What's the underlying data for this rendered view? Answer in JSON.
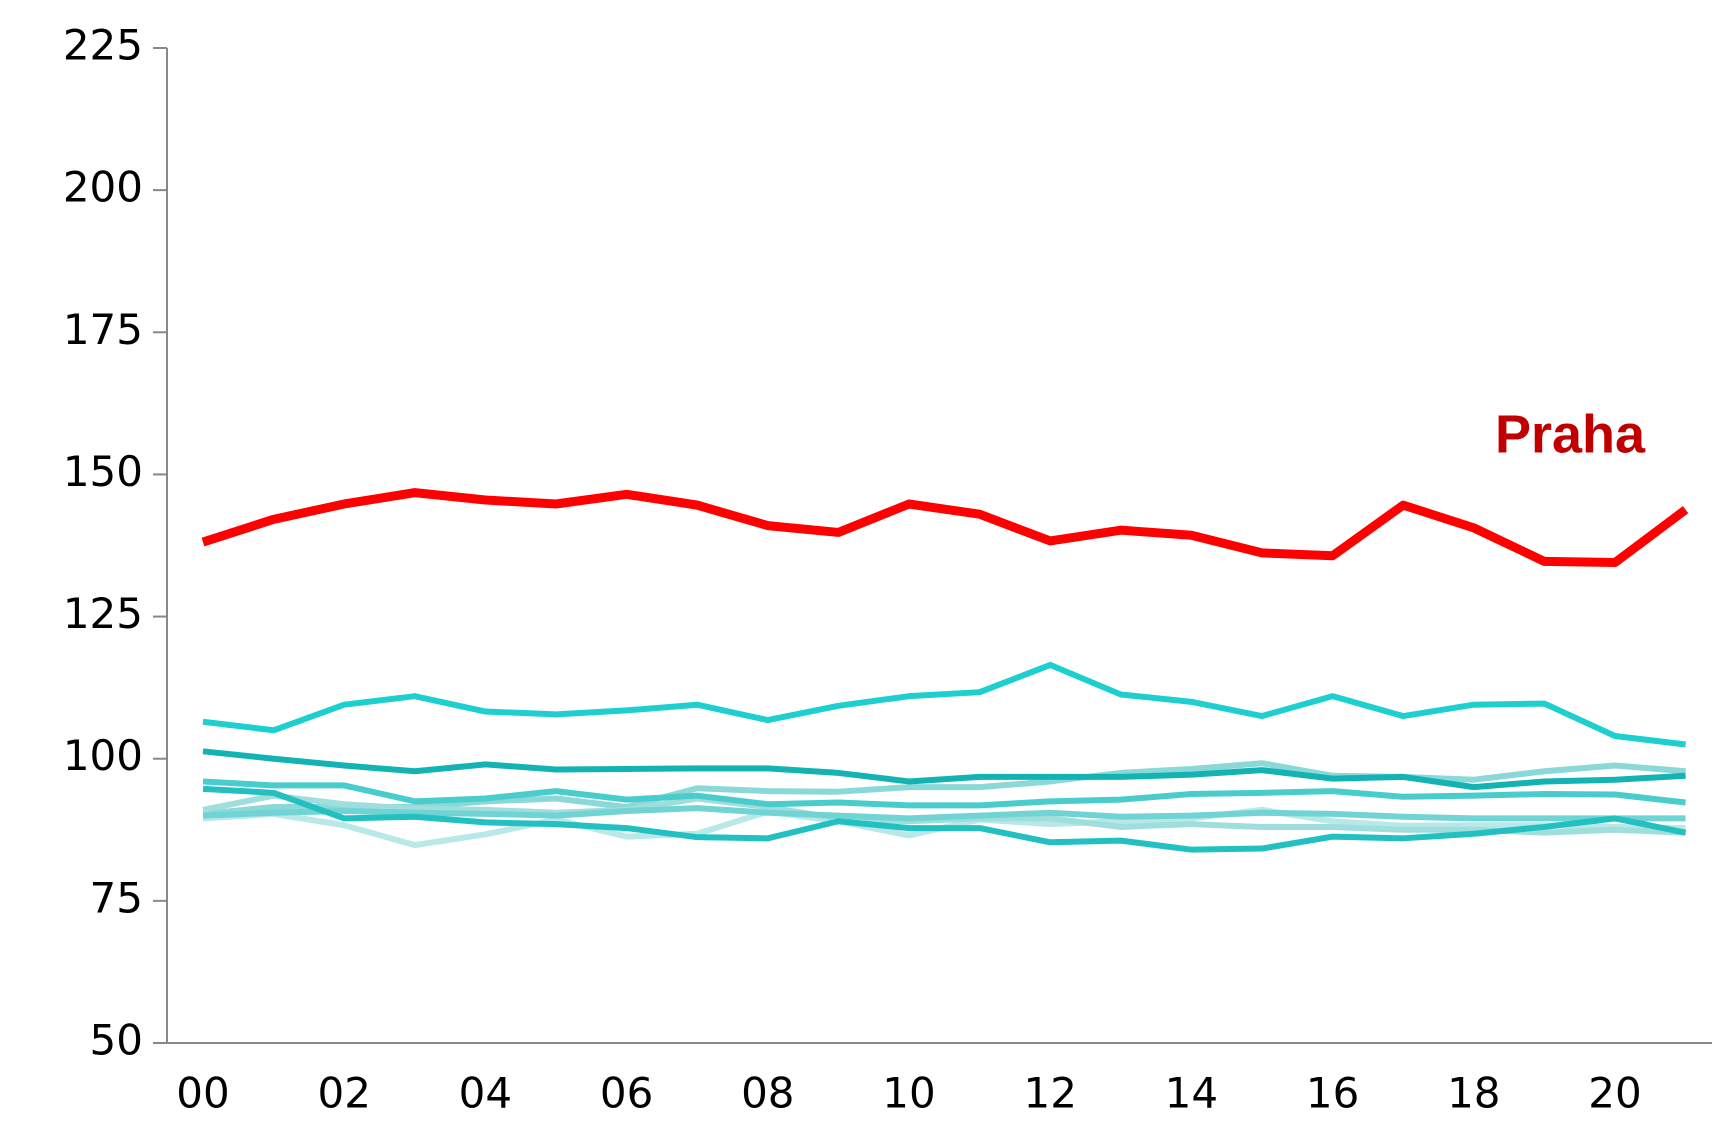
{
  "chart_data": {
    "type": "line",
    "categories": [
      "00",
      null,
      "02",
      null,
      "04",
      null,
      "06",
      null,
      "08",
      null,
      "10",
      null,
      "12",
      null,
      "14",
      null,
      "16",
      null,
      "18",
      null,
      "20",
      null
    ],
    "ylim": [
      50,
      225
    ],
    "yticks": [
      50,
      75,
      100,
      125,
      150,
      175,
      200,
      225
    ],
    "series": [
      {
        "name": "Praha",
        "color": "#ff0000",
        "values": [
          138.1,
          142.1,
          144.8,
          146.8,
          145.5,
          144.8,
          146.5,
          144.6,
          141,
          139.8,
          144.8,
          143,
          138.3,
          140.2,
          139.3,
          136.2,
          135.7,
          144.6,
          140.6,
          134.7,
          134.5,
          143.8
        ]
      },
      {
        "color": "#1ecfcf",
        "values": [
          106.5,
          105,
          109.5,
          111,
          108.3,
          107.8,
          108.5,
          109.5,
          106.8,
          109.3,
          111,
          111.7,
          116.5,
          111.3,
          110,
          107.5,
          111,
          107.5,
          109.5,
          109.7,
          104,
          102.5
        ]
      },
      {
        "color": "#14b3b3",
        "values": [
          101.3,
          100,
          98.8,
          97.8,
          99,
          98.1,
          98.2,
          98.3,
          98.3,
          97.5,
          96,
          96.8,
          96.8,
          96.8,
          97.2,
          98,
          96.5,
          96.8,
          95,
          96,
          96.3,
          97
        ]
      },
      {
        "color": "#48cccc",
        "values": [
          96,
          95.3,
          95.3,
          92.5,
          93,
          94.3,
          92.8,
          93.5,
          92,
          92.3,
          91.8,
          91.8,
          92.5,
          92.8,
          93.8,
          94,
          94.3,
          93.3,
          93.5,
          93.8,
          93.7,
          92.3
        ]
      },
      {
        "color": "#22c0c0",
        "values": [
          94.7,
          94,
          89.5,
          89.8,
          88.8,
          88.5,
          87.8,
          86.2,
          86,
          89,
          87.8,
          87.8,
          85.3,
          85.6,
          84,
          84.2,
          86.3,
          86,
          86.8,
          88,
          89.5,
          87
        ]
      },
      {
        "color": "#70d4d4",
        "values": [
          90,
          90.5,
          90.8,
          90.5,
          90.3,
          90,
          90.8,
          91.3,
          90.5,
          90,
          89.5,
          90,
          90.5,
          89.8,
          90,
          90.5,
          90.3,
          89.8,
          89.5,
          89.5,
          89.5,
          89.5
        ]
      },
      {
        "color": "#a0dede",
        "values": [
          91,
          93.5,
          92,
          91.2,
          91,
          90.5,
          91,
          93,
          91.5,
          89.5,
          89,
          89.5,
          89.5,
          88,
          88.5,
          88,
          88,
          87.5,
          87.5,
          87,
          87.5,
          87
        ]
      },
      {
        "color": "#b8e8e8",
        "values": [
          89.5,
          90.3,
          88.3,
          84.8,
          86.7,
          89.3,
          86.3,
          86.8,
          90.7,
          89,
          86.5,
          89.3,
          88.5,
          89,
          89.5,
          91,
          89,
          88.2,
          88.3,
          88.3,
          88,
          87.8
        ]
      },
      {
        "color": "#8ad8d8",
        "values": [
          90.3,
          91.5,
          91.5,
          91.5,
          92.5,
          93,
          91.5,
          94.8,
          94.3,
          94.2,
          95,
          95,
          96,
          97.5,
          98.2,
          99.2,
          97,
          96.8,
          96.3,
          97.8,
          98.8,
          97.8
        ]
      }
    ]
  }
}
